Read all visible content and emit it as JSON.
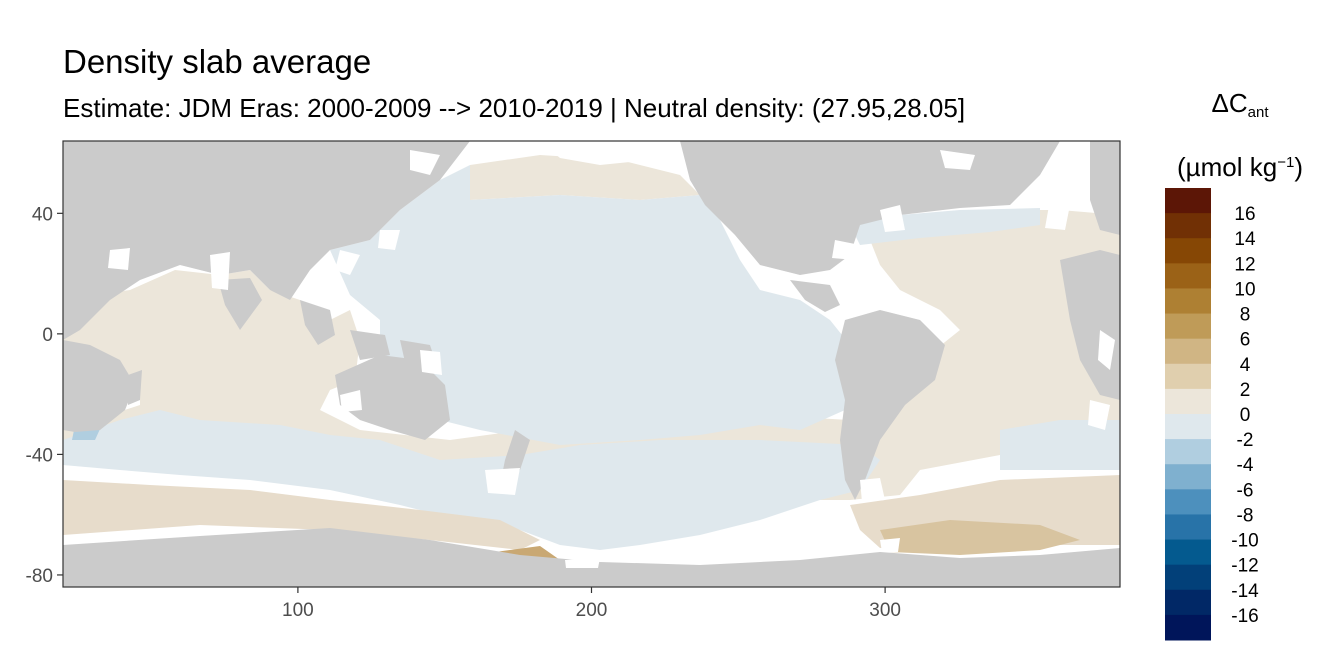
{
  "chart_data": {
    "type": "heatmap",
    "title": "Density slab average",
    "subtitle": "Estimate: JDM Eras: 2000-2009 --> 2010-2019 | Neutral density: (27.95,28.05]",
    "xlabel": "",
    "ylabel": "",
    "xlim": [
      20,
      380
    ],
    "ylim": [
      -84,
      64
    ],
    "x_ticks": [
      100,
      200,
      300
    ],
    "y_ticks": [
      40,
      0,
      -40,
      -80
    ],
    "legend": {
      "symbol": "ΔC",
      "subscript": "ant",
      "unit_prefix": "(µmol kg",
      "unit_sup": "−1",
      "unit_suffix": ")",
      "placement": "right",
      "bins": [
        {
          "label": "16",
          "color": "#5c1606"
        },
        {
          "label": "14",
          "color": "#713005"
        },
        {
          "label": "12",
          "color": "#864705"
        },
        {
          "label": "10",
          "color": "#9b6217"
        },
        {
          "label": "8",
          "color": "#ae8033"
        },
        {
          "label": "6",
          "color": "#bf9b58"
        },
        {
          "label": "4",
          "color": "#d0b584"
        },
        {
          "label": "2",
          "color": "#e0cfae"
        },
        {
          "label": "0",
          "color": "#ece6da"
        },
        {
          "label": "-2",
          "color": "#dfe8ed"
        },
        {
          "label": "-4",
          "color": "#b0cee0"
        },
        {
          "label": "-6",
          "color": "#7fb0cf"
        },
        {
          "label": "-8",
          "color": "#4d90bd"
        },
        {
          "label": "-10",
          "color": "#2873a8"
        },
        {
          "label": "-12",
          "color": "#045a8f"
        },
        {
          "label": "-14",
          "color": "#024079"
        },
        {
          "label": "-16",
          "color": "#012866"
        },
        {
          "label": "",
          "color": "#00155a"
        }
      ]
    },
    "colors": {
      "land": "#cbcbcb",
      "no_data": "#ffffff",
      "positive_small": "#ece6da",
      "negative_small": "#dfe8ed",
      "positive_mid": "#d0b584",
      "positive_high": "#bf9b58"
    }
  }
}
